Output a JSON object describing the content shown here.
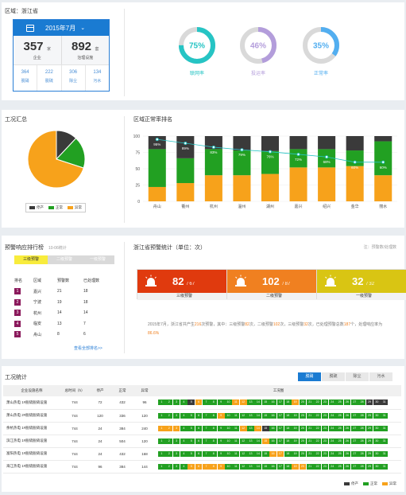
{
  "colors": {
    "primary": "#1a7bd2",
    "stop": "#3a3a3a",
    "normal": "#22a022",
    "abnormal": "#f7a21b",
    "teal": "#26c4c4",
    "purple": "#b39ddb",
    "blue": "#52aef0"
  },
  "overview": {
    "region": "区域：浙江省",
    "month": "2015年7月",
    "enterprise": {
      "value": "357",
      "unit": "家",
      "label": "企业"
    },
    "facility": {
      "value": "892",
      "unit": "套",
      "label": "治理设施"
    },
    "sub": [
      {
        "value": "364",
        "label": "脱硝"
      },
      {
        "value": "222",
        "label": "脱硫"
      },
      {
        "value": "306",
        "label": "除尘"
      },
      {
        "value": "134",
        "label": "污水"
      }
    ],
    "rings": [
      {
        "pct": 75,
        "text": "75%",
        "label": "联网率",
        "color": "#26c4c4"
      },
      {
        "pct": 46,
        "text": "46%",
        "label": "投运率",
        "color": "#b39ddb"
      },
      {
        "pct": 35,
        "text": "35%",
        "label": "正常率",
        "color": "#52aef0"
      }
    ]
  },
  "summary": {
    "title": "工况汇总",
    "legend": {
      "stop": "停产",
      "normal": "正常",
      "abnormal": "异常"
    }
  },
  "ranking": {
    "title": "区域正常率排名",
    "legend": {
      "stop": "停产",
      "normal": "正常",
      "abnormal": "异常"
    }
  },
  "chart_data": [
    {
      "type": "pie",
      "title": "工况汇总",
      "labels": [
        "停产",
        "正常",
        "异常"
      ],
      "values": [
        12,
        18,
        70
      ],
      "colors": [
        "#3a3a3a",
        "#22a022",
        "#f7a21b"
      ]
    },
    {
      "type": "bar",
      "title": "区域正常率排名",
      "categories": [
        "舟山",
        "衢州",
        "杭州",
        "温州",
        "湖州",
        "嘉兴",
        "绍兴",
        "金华",
        "丽水"
      ],
      "series": [
        {
          "name": "异常",
          "values": [
            22,
            28,
            40,
            40,
            42,
            52,
            52,
            54,
            40
          ],
          "color": "#f7a21b"
        },
        {
          "name": "正常",
          "values": [
            58,
            38,
            40,
            38,
            35,
            28,
            28,
            24,
            52
          ],
          "color": "#22a022"
        },
        {
          "name": "停产",
          "values": [
            20,
            34,
            20,
            22,
            23,
            20,
            20,
            22,
            8
          ],
          "color": "#3a3a3a"
        }
      ],
      "line": {
        "values": [
          95,
          89,
          83,
          79,
          76,
          72,
          68,
          60,
          60
        ],
        "labels": [
          "95%",
          "89%",
          "83%",
          "79%",
          "76%",
          "72%",
          "68%",
          "60%",
          "60%"
        ],
        "color": "#26c4c4"
      },
      "yticks": [
        0,
        25,
        50,
        75,
        100
      ],
      "ylim": [
        0,
        100
      ]
    }
  ],
  "warn_rank": {
    "title": "预警响应排行榜",
    "subtitle": "10-06统计",
    "tabs": [
      "三级预警",
      "二级预警",
      "一级预警"
    ],
    "columns": [
      "排名",
      "区域",
      "预警数",
      "已处理数"
    ],
    "rows": [
      {
        "rank": "1",
        "region": "嘉兴",
        "count": "21",
        "handled": "18"
      },
      {
        "rank": "2",
        "region": "宁波",
        "count": "19",
        "handled": "18"
      },
      {
        "rank": "3",
        "region": "杭州",
        "count": "14",
        "handled": "14"
      },
      {
        "rank": "4",
        "region": "临安",
        "count": "13",
        "handled": "7"
      },
      {
        "rank": "5",
        "region": "舟山",
        "count": "8",
        "handled": "6"
      }
    ],
    "more": "查看全部排名>>"
  },
  "warn_stats": {
    "title": "浙江省预警统计（单位：次）",
    "note": "注：预警数/处理数",
    "cards": [
      {
        "value": "82",
        "total": "/ 67",
        "label": "三级预警",
        "color": "#e03a0e"
      },
      {
        "value": "102",
        "total": "/ 87",
        "label": "二级预警",
        "color": "#f08020"
      },
      {
        "value": "32",
        "total": "/ 32",
        "label": "一级预警",
        "color": "#d9c513"
      }
    ],
    "desc": {
      "p1": "2015年7月，浙江省共产生",
      "n1": "216",
      "p2": "次预警，其中：三级预警",
      "n2": "82",
      "p3": "次，二级预警",
      "n3": "102",
      "p4": "次，三级预警",
      "n4": "32",
      "p5": "次，已处理预警总数",
      "n5": "187",
      "p6": "个，处理响应率为",
      "n6": "86.6%"
    }
  },
  "ops": {
    "title": "工况统计",
    "tabs": [
      "脱硝",
      "脱硫",
      "除尘",
      "污水"
    ],
    "columns": [
      "企业设施名称",
      "总时间（h）",
      "停产",
      "正常",
      "异常",
      "工况图"
    ],
    "rows": [
      {
        "name": "萧山热电 1#脱硫脱硝设施",
        "total": "744",
        "stop": "72",
        "normal": "432",
        "abn": "96",
        "days": "nnnnsnnnnnnnnnnnnnnnnnnnnnnnnnn"
      },
      {
        "name": "萧山热电 2#脱硫脱硝设施",
        "total": "744",
        "stop": "120",
        "normal": "336",
        "abn": "120",
        "days": "nnnnnnnnnnnnnnnnnnnnnnnnnnnnnnn"
      },
      {
        "name": "余杭热电 1#脱硫脱硝设施",
        "total": "744",
        "stop": "24",
        "normal": "384",
        "abn": "240",
        "days": "nnnnnnnnnnnnnnnnnnnnnnnnnnnnnnn"
      },
      {
        "name": "滨江热电 1#脱硫脱硝设施",
        "total": "744",
        "stop": "24",
        "normal": "504",
        "abn": "120",
        "days": "nnnnnnnnnnnnnnnnnnnnnnnnnnnnnnn"
      },
      {
        "name": "富阳热电 1#脱硫脱硝设施",
        "total": "744",
        "stop": "24",
        "normal": "432",
        "abn": "168",
        "days": "nnnnnnnnnnnnnnnnnnnnnnnnnnnnnnn"
      },
      {
        "name": "海江热电 1#脱硫脱硝设施",
        "total": "744",
        "stop": "96",
        "normal": "384",
        "abn": "144",
        "days": "nnnnnnnnnnnnnnnnnnnnnnnnnnnnnnn"
      }
    ],
    "legend": {
      "stop": "停产",
      "normal": "正常",
      "abnormal": "异常"
    }
  }
}
